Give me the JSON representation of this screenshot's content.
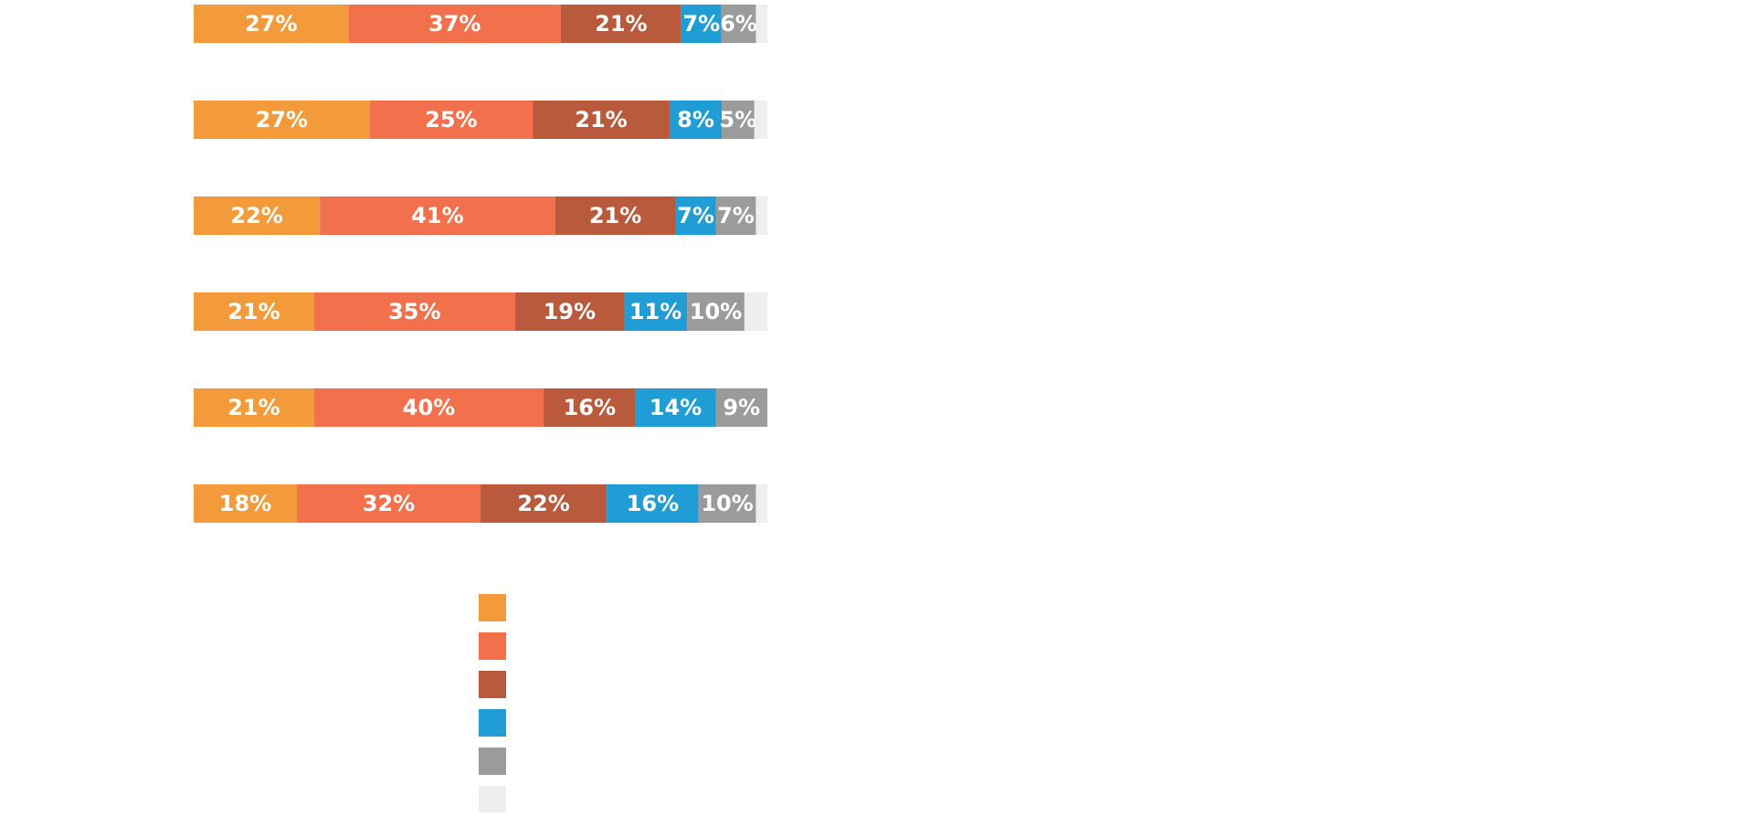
{
  "chart_data": {
    "type": "bar",
    "orientation": "horizontal",
    "stacked": true,
    "normalized": true,
    "title": "",
    "xlabel": "",
    "ylabel": "",
    "xlim": [
      0,
      100
    ],
    "grid": false,
    "categories": [
      "",
      "",
      "",
      "",
      "",
      ""
    ],
    "series": [
      {
        "color": "#F39B3A",
        "values": [
          27,
          27,
          22,
          21,
          21,
          18
        ],
        "labels": [
          "27%",
          "27%",
          "22%",
          "21%",
          "21%",
          "18%"
        ]
      },
      {
        "color": "#F2714C",
        "values": [
          37,
          25,
          41,
          35,
          40,
          32
        ],
        "labels": [
          "37%",
          "25%",
          "41%",
          "35%",
          "40%",
          "32%"
        ]
      },
      {
        "color": "#BA5A3C",
        "values": [
          21,
          21,
          21,
          19,
          16,
          22
        ],
        "labels": [
          "21%",
          "21%",
          "21%",
          "19%",
          "16%",
          "22%"
        ]
      },
      {
        "color": "#209DD4",
        "values": [
          7,
          8,
          7,
          11,
          14,
          16
        ],
        "labels": [
          "7%",
          "8%",
          "7%",
          "11%",
          "14%",
          "16%"
        ]
      },
      {
        "color": "#9B9B9B",
        "values": [
          6,
          5,
          7,
          10,
          9,
          10
        ],
        "labels": [
          "6%",
          "5%",
          "7%",
          "10%",
          "9%",
          "10%"
        ]
      },
      {
        "color": "#EEEEEE",
        "values": [
          2,
          2,
          2,
          4,
          0,
          2
        ],
        "labels": [
          "",
          "",
          "",
          "",
          "",
          ""
        ]
      }
    ],
    "legend": {
      "placement": "bottom"
    }
  }
}
